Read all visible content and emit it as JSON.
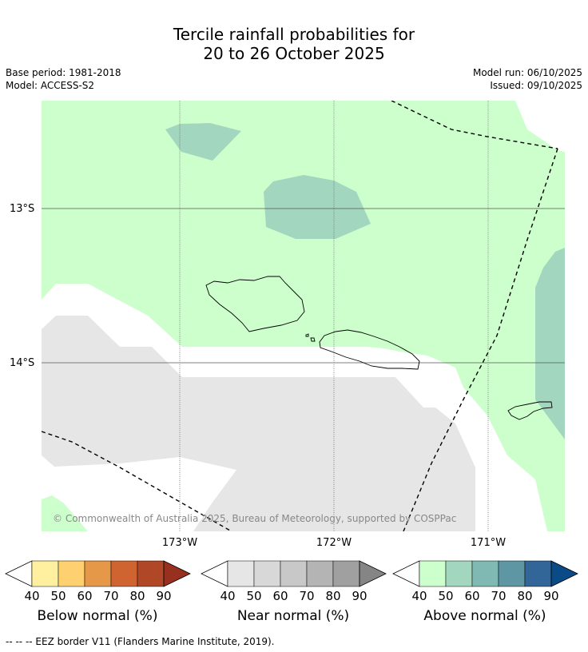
{
  "title_line1": "Tercile rainfall probabilities for",
  "title_line2": "20 to 26 October 2025",
  "meta": {
    "base_period": "Base period: 1981-2018",
    "model": "Model: ACCESS-S2",
    "model_run": "Model run: 06/10/2025",
    "issued": "Issued: 09/10/2025"
  },
  "map": {
    "lat_labels": [
      "13°S",
      "14°S"
    ],
    "lon_labels": [
      "173°W",
      "172°W",
      "171°W"
    ],
    "copyright": "© Commonwealth of Australia 2025, Bureau of Meteorology, supported by COSPPac"
  },
  "colorbars": [
    {
      "name": "below",
      "label": "Below normal (%)",
      "ticks": [
        "40",
        "50",
        "60",
        "70",
        "80",
        "90"
      ],
      "colors": [
        "#ffffff",
        "#fff0a0",
        "#ffd070",
        "#e59848",
        "#d06430",
        "#b04828",
        "#983020"
      ]
    },
    {
      "name": "near",
      "label": "Near normal (%)",
      "ticks": [
        "40",
        "50",
        "60",
        "70",
        "80",
        "90"
      ],
      "colors": [
        "#ffffff",
        "#e6e6e6",
        "#d8d8d8",
        "#c8c8c8",
        "#b4b4b4",
        "#a0a0a0",
        "#858585"
      ]
    },
    {
      "name": "above",
      "label": "Above normal (%)",
      "ticks": [
        "40",
        "50",
        "60",
        "70",
        "80",
        "90"
      ],
      "colors": [
        "#ffffff",
        "#ccffcc",
        "#a3d6be",
        "#80b8b4",
        "#5e96a4",
        "#326698",
        "#0a4a86"
      ]
    }
  ],
  "footnote": "--  --  -- EEZ border V11 (Flanders Marine Institute, 2019)."
}
